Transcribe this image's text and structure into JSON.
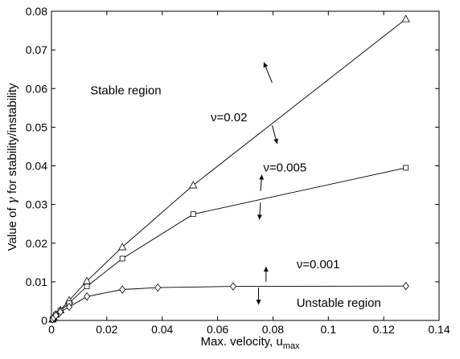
{
  "chart_data": {
    "type": "line",
    "title": "",
    "xlabel": "Max. velocity, u",
    "xlabel_sub": "max",
    "ylabel_pre": "Value of ",
    "ylabel_sym": "γ",
    "ylabel_post": " for stability/instability",
    "xlim": [
      0,
      0.14
    ],
    "ylim": [
      0,
      0.08
    ],
    "xticks": [
      "0",
      "0.02",
      "0.04",
      "0.06",
      "0.08",
      "0.1",
      "0.12",
      "0.14"
    ],
    "yticks": [
      "0",
      "0.01",
      "0.02",
      "0.03",
      "0.04",
      "0.05",
      "0.06",
      "0.07",
      "0.08"
    ],
    "xtick_values": [
      0,
      0.02,
      0.04,
      0.06,
      0.08,
      0.1,
      0.12,
      0.14
    ],
    "ytick_values": [
      0,
      0.01,
      0.02,
      0.03,
      0.04,
      0.05,
      0.06,
      0.07,
      0.08
    ],
    "grid": false,
    "series": [
      {
        "name": "ν=0.02",
        "marker": "triangle",
        "x": [
          0.0004,
          0.0008,
          0.0016,
          0.0032,
          0.0064,
          0.0128,
          0.0256,
          0.0512,
          0.128
        ],
        "y": [
          0.0003,
          0.0008,
          0.0016,
          0.0027,
          0.0052,
          0.0102,
          0.019,
          0.035,
          0.078
        ]
      },
      {
        "name": "ν=0.005",
        "marker": "square",
        "x": [
          0.0004,
          0.0008,
          0.0016,
          0.0032,
          0.0064,
          0.0128,
          0.0256,
          0.0512,
          0.128
        ],
        "y": [
          0.0003,
          0.0008,
          0.0015,
          0.0025,
          0.0045,
          0.0088,
          0.016,
          0.0275,
          0.0395
        ]
      },
      {
        "name": "ν=0.001",
        "marker": "diamond",
        "x": [
          0.0004,
          0.0008,
          0.0016,
          0.0032,
          0.0064,
          0.0128,
          0.0256,
          0.0384,
          0.0656,
          0.128
        ],
        "y": [
          0.0003,
          0.0007,
          0.0013,
          0.0022,
          0.0035,
          0.0062,
          0.008,
          0.0085,
          0.0088,
          0.0089
        ]
      }
    ],
    "annotations": [
      {
        "text": "Stable region",
        "x": 0.014,
        "y": 0.0585
      },
      {
        "text": "ν=0.02",
        "x": 0.0575,
        "y": 0.0515
      },
      {
        "text": "ν=0.005",
        "x": 0.0765,
        "y": 0.0385
      },
      {
        "text": "ν=0.001",
        "x": 0.0885,
        "y": 0.0135
      },
      {
        "text": "Unstable region",
        "x": 0.0885,
        "y": 0.0035
      }
    ],
    "arrows": [
      {
        "x": 0.0797,
        "y": 0.0615,
        "dx": -0.003,
        "dy": 0.0053
      },
      {
        "x": 0.0797,
        "y": 0.0505,
        "dx": 0.0018,
        "dy": -0.0048
      },
      {
        "x": 0.0755,
        "y": 0.0335,
        "dx": 0.0005,
        "dy": 0.0042
      },
      {
        "x": 0.0755,
        "y": 0.0305,
        "dx": -0.0004,
        "dy": -0.0044
      },
      {
        "x": 0.0775,
        "y": 0.01,
        "dx": 0,
        "dy": 0.0039
      },
      {
        "x": 0.0748,
        "y": 0.0085,
        "dx": 0,
        "dy": -0.0044
      }
    ]
  }
}
